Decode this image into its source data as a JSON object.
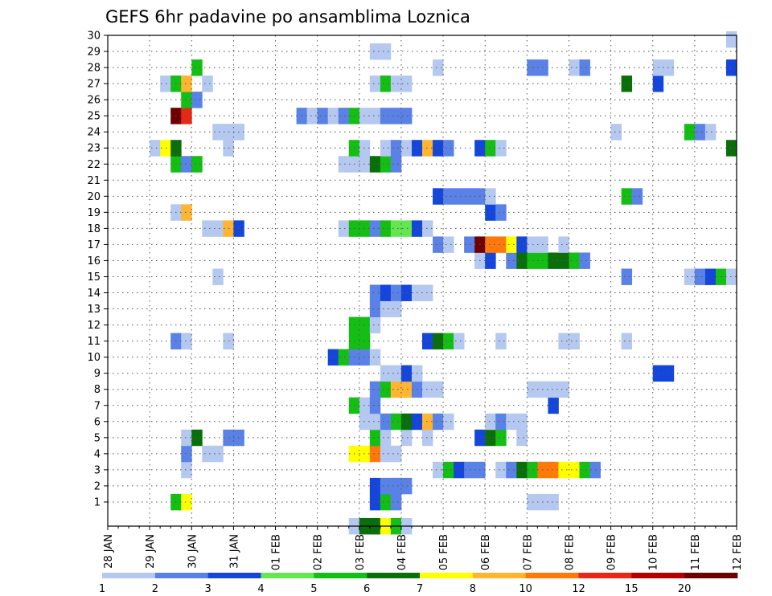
{
  "chart_data": {
    "type": "heatmap",
    "title": "GEFS 6hr padavine po ansamblima Loznica",
    "xlabel": "",
    "ylabel": "",
    "x_tick_labels": [
      "28 JAN",
      "29 JAN",
      "30 JAN",
      "31 JAN",
      "01 FEB",
      "02 FEB",
      "03 FEB",
      "04 FEB",
      "05 FEB",
      "06 FEB",
      "07 FEB",
      "08 FEB",
      "09 FEB",
      "10 FEB",
      "11 FEB",
      "12 FEB"
    ],
    "y_tick_labels": [
      "1",
      "2",
      "3",
      "4",
      "5",
      "6",
      "7",
      "8",
      "9",
      "10",
      "11",
      "12",
      "13",
      "14",
      "15",
      "16",
      "17",
      "18",
      "19",
      "20",
      "21",
      "22",
      "23",
      "24",
      "25",
      "26",
      "27",
      "28",
      "29",
      "30"
    ],
    "x_unit": "days since 28 JAN (6-hourly steps)",
    "xlim": [
      0,
      15
    ],
    "ylim": [
      0,
      30
    ],
    "grid": true,
    "colorbar": {
      "position": "bottom",
      "labels": [
        "1",
        "2",
        "3",
        "4",
        "5",
        "6",
        "7",
        "8",
        "10",
        "12",
        "15",
        "20"
      ],
      "colors": [
        "#b4c8f0",
        "#5a82e6",
        "#1446dc",
        "#64e650",
        "#14be14",
        "#0a6e0a",
        "#ffff00",
        "#ffb432",
        "#ff780a",
        "#e62814",
        "#b40000",
        "#6e0000"
      ]
    },
    "cells": [
      [
        1.5,
        1,
        5
      ],
      [
        1.75,
        1,
        7
      ],
      [
        6.25,
        1,
        3
      ],
      [
        6.5,
        1,
        5
      ],
      [
        6.75,
        1,
        2
      ],
      [
        10,
        1,
        1
      ],
      [
        10.25,
        1,
        1
      ],
      [
        10.5,
        1,
        1
      ],
      [
        6.25,
        2,
        3
      ],
      [
        6.5,
        2,
        2
      ],
      [
        6.75,
        2,
        2
      ],
      [
        6.75,
        2,
        2
      ],
      [
        7,
        2,
        2
      ],
      [
        1.75,
        3,
        1
      ],
      [
        7.75,
        3,
        1
      ],
      [
        8,
        3,
        5
      ],
      [
        8.25,
        3,
        3
      ],
      [
        8.5,
        3,
        2
      ],
      [
        8.75,
        3,
        2
      ],
      [
        9.25,
        3,
        1
      ],
      [
        9.5,
        3,
        2
      ],
      [
        9.75,
        3,
        6
      ],
      [
        10,
        3,
        5
      ],
      [
        10.25,
        3,
        9
      ],
      [
        10.5,
        3,
        9
      ],
      [
        10.75,
        3,
        7
      ],
      [
        11,
        3,
        7
      ],
      [
        11.25,
        3,
        5
      ],
      [
        11.5,
        3,
        2
      ],
      [
        1.75,
        4,
        2
      ],
      [
        2.25,
        4,
        1
      ],
      [
        2.5,
        4,
        1
      ],
      [
        5.75,
        4,
        7
      ],
      [
        6,
        4,
        7
      ],
      [
        6.25,
        4,
        9
      ],
      [
        6.5,
        4,
        1
      ],
      [
        6.75,
        4,
        1
      ],
      [
        1.75,
        5,
        1
      ],
      [
        2,
        5,
        6
      ],
      [
        2.75,
        5,
        2
      ],
      [
        3,
        5,
        2
      ],
      [
        6.25,
        5,
        5
      ],
      [
        6.5,
        5,
        1
      ],
      [
        7,
        5,
        1
      ],
      [
        7.5,
        5,
        1
      ],
      [
        8.75,
        5,
        3
      ],
      [
        9,
        5,
        6
      ],
      [
        9.25,
        5,
        5
      ],
      [
        9.75,
        5,
        1
      ],
      [
        6,
        6,
        1
      ],
      [
        6.25,
        6,
        1
      ],
      [
        6.5,
        6,
        2
      ],
      [
        6.75,
        6,
        5
      ],
      [
        7,
        6,
        6
      ],
      [
        7.25,
        6,
        3
      ],
      [
        7.5,
        6,
        8
      ],
      [
        7.75,
        6,
        2
      ],
      [
        8,
        6,
        1
      ],
      [
        9,
        6,
        1
      ],
      [
        9.25,
        6,
        2
      ],
      [
        9.5,
        6,
        1
      ],
      [
        9.75,
        6,
        1
      ],
      [
        5.75,
        7,
        5
      ],
      [
        6,
        7,
        1
      ],
      [
        6.25,
        7,
        2
      ],
      [
        10.5,
        7,
        3
      ],
      [
        6.25,
        8,
        2
      ],
      [
        6.5,
        8,
        5
      ],
      [
        6.75,
        8,
        8
      ],
      [
        7,
        8,
        8
      ],
      [
        7.25,
        8,
        2
      ],
      [
        7.5,
        8,
        1
      ],
      [
        7.75,
        8,
        1
      ],
      [
        10,
        8,
        1
      ],
      [
        10.25,
        8,
        1
      ],
      [
        10.5,
        8,
        1
      ],
      [
        10.75,
        8,
        1
      ],
      [
        6.5,
        9,
        1
      ],
      [
        6.75,
        9,
        1
      ],
      [
        7,
        9,
        3
      ],
      [
        7.25,
        9,
        1
      ],
      [
        13,
        9,
        3
      ],
      [
        13.25,
        9,
        3
      ],
      [
        5.25,
        10,
        3
      ],
      [
        5.5,
        10,
        5
      ],
      [
        5.75,
        10,
        2
      ],
      [
        6,
        10,
        2
      ],
      [
        6.25,
        10,
        1
      ],
      [
        1.5,
        11,
        2
      ],
      [
        1.75,
        11,
        1
      ],
      [
        2.75,
        11,
        1
      ],
      [
        5.75,
        11,
        5
      ],
      [
        6,
        11,
        5
      ],
      [
        7.5,
        11,
        3
      ],
      [
        7.75,
        11,
        6
      ],
      [
        8,
        11,
        5
      ],
      [
        8.25,
        11,
        1
      ],
      [
        9.25,
        11,
        1
      ],
      [
        10.75,
        11,
        1
      ],
      [
        11,
        11,
        1
      ],
      [
        12.25,
        11,
        1
      ],
      [
        5.75,
        12,
        5
      ],
      [
        6,
        12,
        5
      ],
      [
        6.25,
        12,
        1
      ],
      [
        6.25,
        13,
        2
      ],
      [
        6.5,
        13,
        1
      ],
      [
        6.75,
        13,
        1
      ],
      [
        6.25,
        14,
        2
      ],
      [
        6.5,
        14,
        3
      ],
      [
        6.75,
        14,
        2
      ],
      [
        7,
        14,
        3
      ],
      [
        7.25,
        14,
        1
      ],
      [
        7.5,
        14,
        1
      ],
      [
        2.5,
        15,
        1
      ],
      [
        12.25,
        15,
        2
      ],
      [
        13.75,
        15,
        1
      ],
      [
        14,
        15,
        2
      ],
      [
        14.25,
        15,
        3
      ],
      [
        14.5,
        15,
        5
      ],
      [
        14.75,
        15,
        1
      ],
      [
        8.75,
        16,
        1
      ],
      [
        9,
        16,
        3
      ],
      [
        9.5,
        16,
        2
      ],
      [
        9.75,
        16,
        6
      ],
      [
        10,
        16,
        5
      ],
      [
        10.25,
        16,
        5
      ],
      [
        10.5,
        16,
        6
      ],
      [
        10.75,
        16,
        6
      ],
      [
        11,
        16,
        5
      ],
      [
        11.25,
        16,
        2
      ],
      [
        7.75,
        17,
        2
      ],
      [
        8,
        17,
        1
      ],
      [
        8.5,
        17,
        2
      ],
      [
        8.75,
        17,
        12
      ],
      [
        9,
        17,
        9
      ],
      [
        9.25,
        17,
        9
      ],
      [
        9.5,
        17,
        7
      ],
      [
        9.75,
        17,
        3
      ],
      [
        10,
        17,
        1
      ],
      [
        10.25,
        17,
        1
      ],
      [
        10.75,
        17,
        1
      ],
      [
        2.25,
        18,
        1
      ],
      [
        2.5,
        18,
        1
      ],
      [
        2.75,
        18,
        8
      ],
      [
        3,
        18,
        3
      ],
      [
        5.5,
        18,
        1
      ],
      [
        5.75,
        18,
        5
      ],
      [
        6,
        18,
        5
      ],
      [
        6.25,
        18,
        2
      ],
      [
        6.5,
        18,
        5
      ],
      [
        6.75,
        18,
        4
      ],
      [
        7,
        18,
        4
      ],
      [
        7.25,
        18,
        3
      ],
      [
        7.5,
        18,
        1
      ],
      [
        1.5,
        19,
        1
      ],
      [
        1.75,
        19,
        8
      ],
      [
        9,
        19,
        3
      ],
      [
        9.25,
        19,
        2
      ],
      [
        7.75,
        20,
        3
      ],
      [
        8,
        20,
        2
      ],
      [
        8.25,
        20,
        2
      ],
      [
        8.5,
        20,
        2
      ],
      [
        8.75,
        20,
        2
      ],
      [
        9,
        20,
        1
      ],
      [
        12.25,
        20,
        5
      ],
      [
        12.5,
        20,
        2
      ],
      [
        5.5,
        22,
        1
      ],
      [
        5.75,
        22,
        1
      ],
      [
        6,
        22,
        1
      ],
      [
        6.25,
        22,
        6
      ],
      [
        6.5,
        22,
        5
      ],
      [
        6.75,
        22,
        2
      ],
      [
        1.5,
        22,
        5
      ],
      [
        1.75,
        22,
        2
      ],
      [
        2,
        22,
        5
      ],
      [
        1,
        23,
        1
      ],
      [
        1.25,
        23,
        7
      ],
      [
        1.5,
        23,
        6
      ],
      [
        2.75,
        23,
        1
      ],
      [
        5.75,
        23,
        5
      ],
      [
        6,
        23,
        1
      ],
      [
        6.5,
        23,
        1
      ],
      [
        6.75,
        23,
        2
      ],
      [
        7,
        23,
        1
      ],
      [
        7.25,
        23,
        3
      ],
      [
        7.5,
        23,
        8
      ],
      [
        7.75,
        23,
        3
      ],
      [
        8,
        23,
        2
      ],
      [
        8.75,
        23,
        3
      ],
      [
        9,
        23,
        5
      ],
      [
        9.25,
        23,
        1
      ],
      [
        14.75,
        23,
        6
      ],
      [
        2.5,
        24,
        1
      ],
      [
        2.75,
        24,
        1
      ],
      [
        3,
        24,
        1
      ],
      [
        3,
        24,
        1
      ],
      [
        12,
        24,
        1
      ],
      [
        13.75,
        24,
        5
      ],
      [
        14,
        24,
        2
      ],
      [
        14.25,
        24,
        1
      ],
      [
        4.5,
        25,
        2
      ],
      [
        4.75,
        25,
        1
      ],
      [
        5,
        25,
        2
      ],
      [
        5.25,
        25,
        1
      ],
      [
        5.5,
        25,
        2
      ],
      [
        5.75,
        25,
        5
      ],
      [
        6,
        25,
        1
      ],
      [
        6.25,
        25,
        1
      ],
      [
        6.5,
        25,
        2
      ],
      [
        6.75,
        25,
        2
      ],
      [
        7,
        25,
        2
      ],
      [
        1.5,
        25,
        12
      ],
      [
        1.75,
        25,
        10
      ],
      [
        1.75,
        26,
        5
      ],
      [
        2,
        26,
        2
      ],
      [
        1.25,
        27,
        1
      ],
      [
        1.5,
        27,
        5
      ],
      [
        1.75,
        27,
        8
      ],
      [
        2.25,
        27,
        1
      ],
      [
        6.25,
        27,
        1
      ],
      [
        6.5,
        27,
        5
      ],
      [
        6.75,
        27,
        1
      ],
      [
        7,
        27,
        1
      ],
      [
        12.25,
        27,
        6
      ],
      [
        13,
        27,
        3
      ],
      [
        2,
        28,
        5
      ],
      [
        7.75,
        28,
        1
      ],
      [
        10,
        28,
        2
      ],
      [
        10.25,
        28,
        2
      ],
      [
        11,
        28,
        1
      ],
      [
        11.25,
        28,
        2
      ],
      [
        13,
        28,
        1
      ],
      [
        13.25,
        28,
        1
      ],
      [
        14.75,
        28,
        3
      ],
      [
        6.25,
        29,
        1
      ],
      [
        6.5,
        29,
        1
      ],
      [
        14.75,
        29.75,
        1
      ],
      [
        5.75,
        -1,
        1
      ],
      [
        6,
        -1,
        6
      ],
      [
        6.25,
        -1,
        6
      ],
      [
        6.5,
        -1,
        7
      ],
      [
        6.75,
        -1,
        5
      ],
      [
        7,
        -1,
        1
      ]
    ]
  }
}
